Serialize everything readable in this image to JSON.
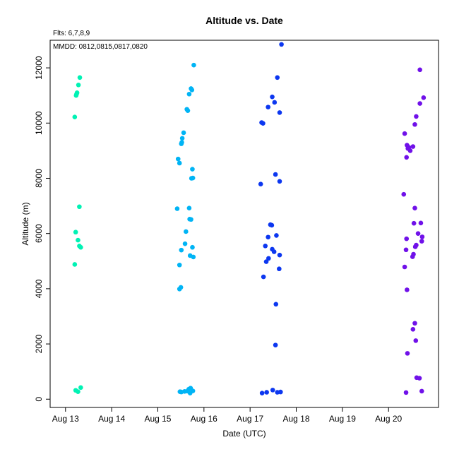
{
  "chart_data": {
    "type": "scatter",
    "title": "Altitude  vs. Date",
    "flights_note": "Flts: 6,7,8,9",
    "mmdd_note": "MMDD: 0812,0815,0817,0820",
    "xlabel": "Date (UTC)",
    "ylabel": "Altitude (m)",
    "x_ticks": [
      "Aug 13",
      "Aug 14",
      "Aug 15",
      "Aug 16",
      "Aug 17",
      "Aug 18",
      "Aug 19",
      "Aug 20"
    ],
    "xlim": [
      "2012-08-12T16:00",
      "2012-08-21T02:00"
    ],
    "ylim": [
      -300,
      13000
    ],
    "y_ticks": [
      0,
      2000,
      4000,
      6000,
      8000,
      10000,
      12000
    ],
    "grid": false,
    "series": [
      {
        "color": "#00f2b4",
        "points": [
          [
            "2012-08-13T04:48",
            10220
          ],
          [
            "2012-08-13T05:31",
            11000
          ],
          [
            "2012-08-13T05:45",
            11050
          ],
          [
            "2012-08-13T06:00",
            11100
          ],
          [
            "2012-08-13T06:43",
            11380
          ],
          [
            "2012-08-13T07:26",
            11650
          ],
          [
            "2012-08-13T07:12",
            6970
          ],
          [
            "2012-08-13T05:17",
            6050
          ],
          [
            "2012-08-13T06:29",
            5760
          ],
          [
            "2012-08-13T07:12",
            5550
          ],
          [
            "2012-08-13T07:55",
            5500
          ],
          [
            "2012-08-13T04:48",
            4880
          ],
          [
            "2012-08-13T05:17",
            320
          ],
          [
            "2012-08-13T06:29",
            270
          ],
          [
            "2012-08-13T07:55",
            420
          ]
        ]
      },
      {
        "color": "#00b4f5",
        "points": [
          [
            "2012-08-15T18:43",
            12100
          ],
          [
            "2012-08-15T17:17",
            11250
          ],
          [
            "2012-08-15T17:45",
            11200
          ],
          [
            "2012-08-15T16:19",
            11050
          ],
          [
            "2012-08-15T15:07",
            10500
          ],
          [
            "2012-08-15T15:36",
            10450
          ],
          [
            "2012-08-15T13:26",
            9650
          ],
          [
            "2012-08-15T12:43",
            9450
          ],
          [
            "2012-08-15T12:29",
            9300
          ],
          [
            "2012-08-15T12:14",
            9250
          ],
          [
            "2012-08-15T10:34",
            8700
          ],
          [
            "2012-08-15T11:17",
            8550
          ],
          [
            "2012-08-15T17:59",
            8330
          ],
          [
            "2012-08-15T17:31",
            8000
          ],
          [
            "2012-08-15T18:14",
            8010
          ],
          [
            "2012-08-15T10:05",
            6900
          ],
          [
            "2012-08-15T16:19",
            6920
          ],
          [
            "2012-08-15T16:34",
            6520
          ],
          [
            "2012-08-15T17:17",
            6510
          ],
          [
            "2012-08-15T14:38",
            6070
          ],
          [
            "2012-08-15T14:10",
            5630
          ],
          [
            "2012-08-15T18:00",
            5500
          ],
          [
            "2012-08-15T12:14",
            5400
          ],
          [
            "2012-08-15T16:48",
            5200
          ],
          [
            "2012-08-15T18:29",
            5150
          ],
          [
            "2012-08-15T11:17",
            4860
          ],
          [
            "2012-08-15T12:00",
            4050
          ],
          [
            "2012-08-15T11:17",
            3990
          ],
          [
            "2012-08-15T11:31",
            270
          ],
          [
            "2012-08-15T12:14",
            260
          ],
          [
            "2012-08-15T13:55",
            280
          ],
          [
            "2012-08-15T15:22",
            290
          ],
          [
            "2012-08-15T16:05",
            360
          ],
          [
            "2012-08-15T17:02",
            400
          ],
          [
            "2012-08-15T18:14",
            300
          ],
          [
            "2012-08-15T16:48",
            220
          ]
        ]
      },
      {
        "color": "#0c37f0",
        "points": [
          [
            "2012-08-17T16:19",
            12850
          ],
          [
            "2012-08-17T14:10",
            11650
          ],
          [
            "2012-08-17T11:31",
            10950
          ],
          [
            "2012-08-17T12:43",
            10750
          ],
          [
            "2012-08-17T09:22",
            10580
          ],
          [
            "2012-08-17T15:22",
            10380
          ],
          [
            "2012-08-17T06:00",
            10020
          ],
          [
            "2012-08-17T06:43",
            9990
          ],
          [
            "2012-08-17T13:12",
            8140
          ],
          [
            "2012-08-17T15:22",
            7890
          ],
          [
            "2012-08-17T05:31",
            7790
          ],
          [
            "2012-08-17T10:34",
            6320
          ],
          [
            "2012-08-17T11:17",
            6300
          ],
          [
            "2012-08-17T13:41",
            5930
          ],
          [
            "2012-08-17T09:22",
            5870
          ],
          [
            "2012-08-17T07:55",
            5550
          ],
          [
            "2012-08-17T11:31",
            5430
          ],
          [
            "2012-08-17T12:29",
            5340
          ],
          [
            "2012-08-17T15:22",
            5220
          ],
          [
            "2012-08-17T09:36",
            5100
          ],
          [
            "2012-08-17T08:24",
            4980
          ],
          [
            "2012-08-17T15:07",
            4720
          ],
          [
            "2012-08-17T06:58",
            4430
          ],
          [
            "2012-08-17T13:26",
            3440
          ],
          [
            "2012-08-17T13:12",
            1960
          ],
          [
            "2012-08-17T06:14",
            220
          ],
          [
            "2012-08-17T08:38",
            250
          ],
          [
            "2012-08-17T11:46",
            330
          ],
          [
            "2012-08-17T14:10",
            250
          ],
          [
            "2012-08-17T15:50",
            260
          ]
        ]
      },
      {
        "color": "#7011e9",
        "points": [
          [
            "2012-08-20T16:19",
            11930
          ],
          [
            "2012-08-20T18:14",
            10920
          ],
          [
            "2012-08-20T16:19",
            10710
          ],
          [
            "2012-08-20T14:24",
            10240
          ],
          [
            "2012-08-20T13:41",
            9950
          ],
          [
            "2012-08-20T08:24",
            9620
          ],
          [
            "2012-08-20T09:36",
            9200
          ],
          [
            "2012-08-20T10:34",
            9120
          ],
          [
            "2012-08-20T12:43",
            9150
          ],
          [
            "2012-08-20T10:05",
            9080
          ],
          [
            "2012-08-20T11:17",
            9000
          ],
          [
            "2012-08-20T09:22",
            8760
          ],
          [
            "2012-08-20T07:55",
            7420
          ],
          [
            "2012-08-20T13:41",
            6920
          ],
          [
            "2012-08-20T13:12",
            6370
          ],
          [
            "2012-08-20T16:48",
            6380
          ],
          [
            "2012-08-20T15:22",
            6000
          ],
          [
            "2012-08-20T17:31",
            5880
          ],
          [
            "2012-08-20T09:22",
            5810
          ],
          [
            "2012-08-20T17:17",
            5720
          ],
          [
            "2012-08-20T14:24",
            5580
          ],
          [
            "2012-08-20T13:55",
            5520
          ],
          [
            "2012-08-20T09:07",
            5410
          ],
          [
            "2012-08-20T12:58",
            5250
          ],
          [
            "2012-08-20T12:29",
            5160
          ],
          [
            "2012-08-20T08:24",
            4790
          ],
          [
            "2012-08-20T09:36",
            3960
          ],
          [
            "2012-08-20T13:41",
            2750
          ],
          [
            "2012-08-20T12:43",
            2530
          ],
          [
            "2012-08-20T14:10",
            2120
          ],
          [
            "2012-08-20T09:50",
            1660
          ],
          [
            "2012-08-20T14:38",
            780
          ],
          [
            "2012-08-20T16:05",
            760
          ],
          [
            "2012-08-20T09:07",
            240
          ],
          [
            "2012-08-20T17:17",
            290
          ]
        ]
      }
    ]
  }
}
